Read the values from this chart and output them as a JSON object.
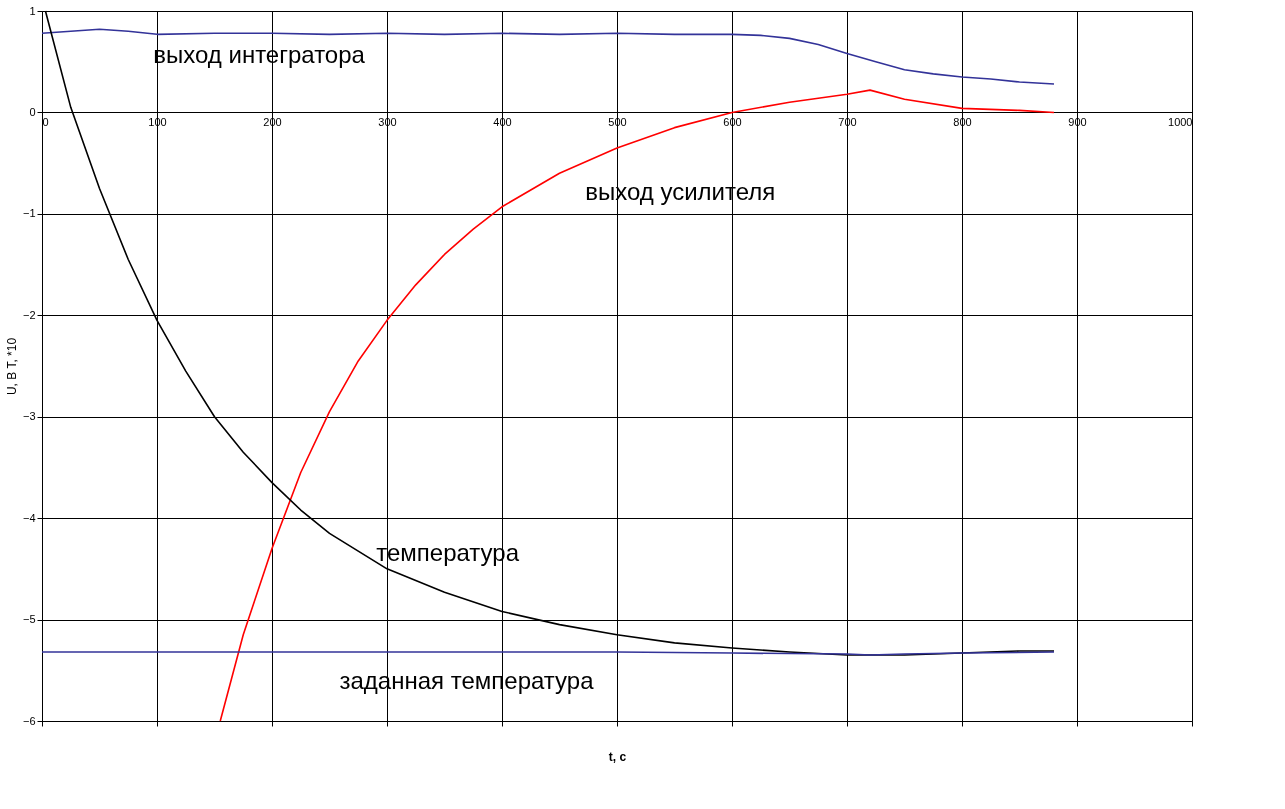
{
  "chart_data": {
    "type": "line",
    "xlabel": "t, c",
    "ylabel": "U, B        T, *10",
    "xlim": [
      0,
      1000
    ],
    "ylim": [
      -6,
      1
    ],
    "xticks": [
      0,
      100,
      200,
      300,
      400,
      500,
      600,
      700,
      800,
      900,
      1000
    ],
    "yticks": [
      -6,
      -5,
      -4,
      -3,
      -2,
      -1,
      0,
      1
    ],
    "grid": true,
    "series": [
      {
        "color": "#333399",
        "x": [
          0,
          25,
          50,
          75,
          100,
          150,
          200,
          250,
          300,
          350,
          400,
          450,
          500,
          550,
          600,
          625,
          650,
          675,
          700,
          725,
          750,
          775,
          800,
          825,
          850,
          880
        ],
        "values": [
          0.78,
          0.8,
          0.82,
          0.8,
          0.77,
          0.78,
          0.78,
          0.77,
          0.78,
          0.77,
          0.78,
          0.77,
          0.78,
          0.77,
          0.77,
          0.76,
          0.73,
          0.67,
          0.58,
          0.5,
          0.42,
          0.38,
          0.35,
          0.33,
          0.3,
          0.28
        ]
      },
      {
        "color": "#ff0000",
        "x": [
          155,
          175,
          200,
          225,
          250,
          275,
          300,
          325,
          350,
          375,
          400,
          450,
          500,
          550,
          600,
          650,
          700,
          720,
          750,
          800,
          850,
          880
        ],
        "values": [
          -6,
          -5.15,
          -4.3,
          -3.55,
          -2.95,
          -2.45,
          -2.05,
          -1.7,
          -1.4,
          -1.15,
          -0.93,
          -0.6,
          -0.35,
          -0.15,
          0.0,
          0.1,
          0.18,
          0.22,
          0.13,
          0.04,
          0.02,
          0.0
        ]
      },
      {
        "color": "#000000",
        "x": [
          3,
          25,
          50,
          75,
          100,
          125,
          150,
          175,
          200,
          225,
          250,
          300,
          350,
          400,
          450,
          500,
          550,
          600,
          650,
          700,
          750,
          800,
          850,
          880
        ],
        "values": [
          1.0,
          0.05,
          -0.75,
          -1.45,
          -2.05,
          -2.55,
          -3.0,
          -3.35,
          -3.65,
          -3.92,
          -4.15,
          -4.5,
          -4.73,
          -4.92,
          -5.05,
          -5.15,
          -5.23,
          -5.28,
          -5.32,
          -5.35,
          -5.35,
          -5.33,
          -5.31,
          -5.31
        ]
      },
      {
        "color": "#333399",
        "x": [
          0,
          100,
          200,
          300,
          400,
          500,
          600,
          700,
          720,
          750,
          800,
          880
        ],
        "values": [
          -5.32,
          -5.32,
          -5.32,
          -5.32,
          -5.32,
          -5.32,
          -5.33,
          -5.34,
          -5.35,
          -5.34,
          -5.33,
          -5.32
        ]
      }
    ],
    "annotations": [
      {
        "text": "выход интегратора",
        "x": 75,
        "y": 0.8
      },
      {
        "text": "выход усилителя",
        "x": 455,
        "y": -0.6
      },
      {
        "text": "температура",
        "x": 275,
        "y": -4.35
      },
      {
        "text": "заданная температура",
        "x": 250,
        "y": -5.32
      }
    ]
  }
}
